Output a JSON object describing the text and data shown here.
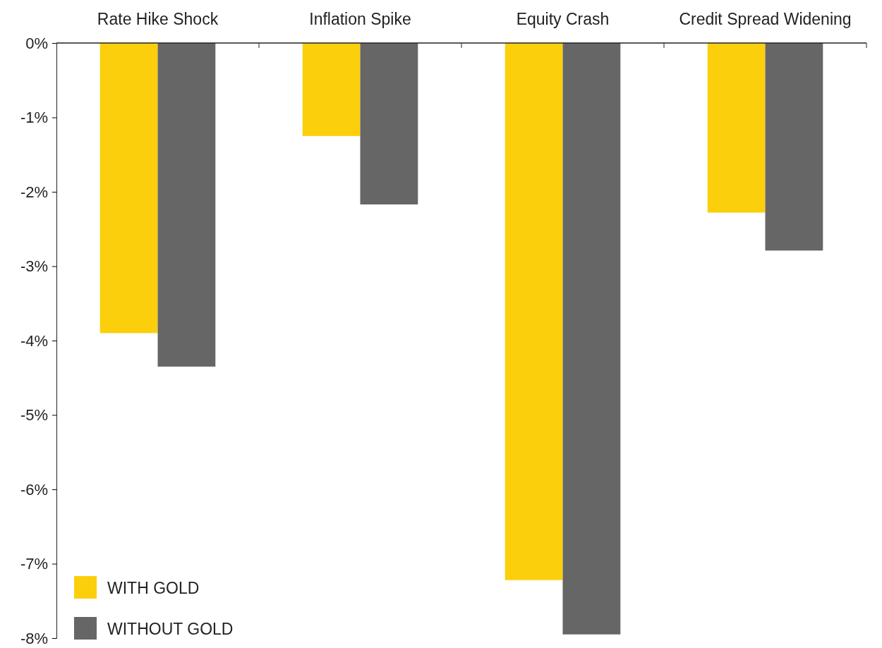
{
  "chart_data": {
    "type": "bar",
    "categories": [
      "Rate Hike Shock",
      "Inflation Spike",
      "Equity Crash",
      "Credit Spread Widening"
    ],
    "series": [
      {
        "name": "WITH GOLD",
        "color": "#fccf0c",
        "values": [
          -3.9,
          -1.25,
          -7.22,
          -2.28
        ]
      },
      {
        "name": "WITHOUT GOLD",
        "color": "#666666",
        "values": [
          -4.35,
          -2.17,
          -7.95,
          -2.79
        ]
      }
    ],
    "ylim": [
      -8,
      0
    ],
    "yticks": [
      {
        "value": 0,
        "label": "0%"
      },
      {
        "value": -1,
        "label": "-1%"
      },
      {
        "value": -2,
        "label": "-2%"
      },
      {
        "value": -3,
        "label": "-3%"
      },
      {
        "value": -4,
        "label": "-4%"
      },
      {
        "value": -5,
        "label": "-5%"
      },
      {
        "value": -6,
        "label": "-6%"
      },
      {
        "value": -7,
        "label": "-7%"
      },
      {
        "value": -8,
        "label": "-8%"
      }
    ],
    "grid": false,
    "legend": "bottom left"
  }
}
